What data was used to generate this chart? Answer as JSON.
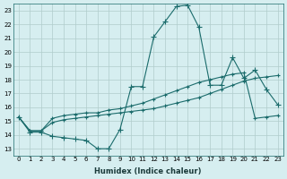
{
  "xlabel": "Humidex (Indice chaleur)",
  "ylabel": "",
  "xlim": [
    0,
    23
  ],
  "ylim": [
    13,
    23
  ],
  "yticks": [
    13,
    14,
    15,
    16,
    17,
    18,
    19,
    20,
    21,
    22,
    23
  ],
  "xticks": [
    0,
    1,
    2,
    3,
    4,
    5,
    6,
    7,
    8,
    9,
    10,
    11,
    12,
    13,
    14,
    15,
    16,
    17,
    18,
    19,
    20,
    21,
    22,
    23
  ],
  "bg_color": "#d6eef0",
  "grid_color": "#b0cccc",
  "line_color": "#1a6b6b",
  "line1": {
    "x": [
      0,
      1,
      2,
      3,
      4,
      5,
      6,
      7,
      8,
      9,
      10,
      11,
      12,
      13,
      14,
      15,
      16,
      17,
      18,
      19,
      20,
      21,
      22,
      23
    ],
    "y": [
      15.3,
      14.2,
      14.2,
      13.9,
      13.8,
      13.7,
      13.6,
      13.0,
      13.0,
      14.4,
      17.5,
      17.5,
      21.1,
      22.2,
      23.3,
      23.4,
      21.8,
      17.6,
      17.6,
      19.6,
      18.1,
      18.7,
      17.3,
      16.2
    ]
  },
  "line2": {
    "x": [
      0,
      1,
      2,
      3,
      4,
      5,
      6,
      7,
      8,
      9,
      10,
      11,
      12,
      13,
      14,
      15,
      16,
      17,
      18,
      19,
      20,
      21,
      22,
      23
    ],
    "y": [
      15.3,
      14.3,
      14.3,
      14.9,
      15.1,
      15.2,
      15.3,
      15.4,
      15.5,
      15.6,
      15.7,
      15.8,
      15.9,
      16.1,
      16.3,
      16.5,
      16.7,
      17.0,
      17.3,
      17.6,
      17.9,
      18.1,
      18.2,
      18.3
    ]
  },
  "line3": {
    "x": [
      0,
      1,
      2,
      3,
      4,
      5,
      6,
      7,
      8,
      9,
      10,
      11,
      12,
      13,
      14,
      15,
      16,
      17,
      18,
      19,
      20,
      21,
      22,
      23
    ],
    "y": [
      15.3,
      14.3,
      14.3,
      15.2,
      15.4,
      15.5,
      15.6,
      15.6,
      15.8,
      15.9,
      16.1,
      16.3,
      16.6,
      16.9,
      17.2,
      17.5,
      17.8,
      18.0,
      18.2,
      18.4,
      18.5,
      15.2,
      15.3,
      15.4
    ]
  }
}
